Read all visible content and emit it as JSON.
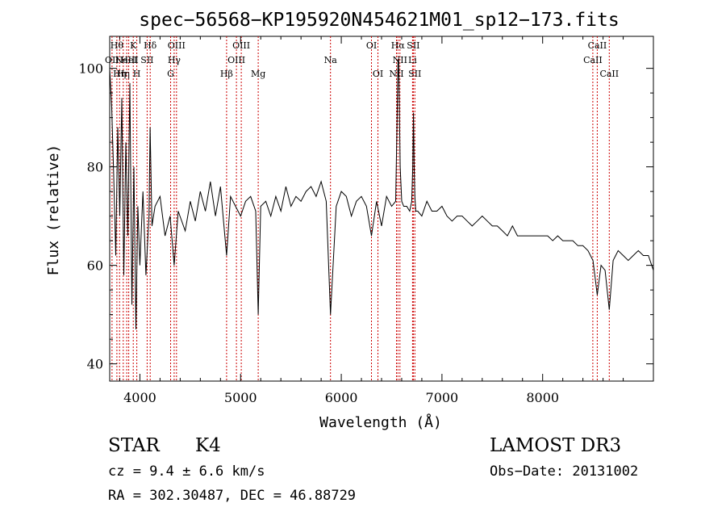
{
  "chart_data": {
    "type": "line",
    "title": "spec−56568−KP195920N454621M01_sp12−173.fits",
    "xlabel": "Wavelength (Å)",
    "ylabel": "Flux (relative)",
    "xlim": [
      3700,
      9100
    ],
    "ylim": [
      36.5,
      106.5
    ],
    "x_ticks": [
      4000,
      5000,
      6000,
      7000,
      8000
    ],
    "y_ticks": [
      40,
      60,
      80,
      100
    ],
    "grid": false,
    "series": [
      {
        "name": "spectrum",
        "color": "#000000",
        "x": [
          3700,
          3720,
          3740,
          3760,
          3780,
          3800,
          3820,
          3840,
          3860,
          3880,
          3900,
          3920,
          3940,
          3960,
          3980,
          4000,
          4030,
          4060,
          4090,
          4101,
          4120,
          4150,
          4200,
          4250,
          4300,
          4340,
          4380,
          4450,
          4500,
          4550,
          4600,
          4650,
          4700,
          4750,
          4800,
          4861,
          4900,
          4950,
          5000,
          5050,
          5100,
          5150,
          5175,
          5200,
          5250,
          5300,
          5350,
          5400,
          5450,
          5500,
          5550,
          5600,
          5650,
          5700,
          5750,
          5800,
          5850,
          5893,
          5950,
          6000,
          6050,
          6100,
          6150,
          6200,
          6250,
          6300,
          6350,
          6400,
          6450,
          6500,
          6540,
          6555,
          6563,
          6570,
          6575,
          6585,
          6600,
          6620,
          6650,
          6680,
          6700,
          6710,
          6717,
          6724,
          6731,
          6740,
          6760,
          6800,
          6850,
          6900,
          6950,
          7000,
          7050,
          7100,
          7150,
          7200,
          7250,
          7300,
          7350,
          7400,
          7450,
          7500,
          7550,
          7600,
          7650,
          7700,
          7750,
          7800,
          7850,
          7900,
          7950,
          8000,
          8050,
          8100,
          8150,
          8200,
          8250,
          8300,
          8350,
          8400,
          8450,
          8500,
          8542,
          8580,
          8620,
          8662,
          8700,
          8750,
          8800,
          8850,
          8900,
          8950,
          9000,
          9050,
          9100
        ],
        "y": [
          100,
          92,
          78,
          62,
          88,
          70,
          94,
          58,
          85,
          66,
          97,
          52,
          80,
          47,
          72,
          60,
          75,
          58,
          70,
          88,
          68,
          72,
          74,
          66,
          70,
          60,
          71,
          67,
          73,
          69,
          75,
          71,
          77,
          70,
          76,
          62,
          74,
          72,
          70,
          73,
          74,
          71,
          50,
          72,
          73,
          70,
          74,
          71,
          76,
          72,
          74,
          73,
          75,
          76,
          74,
          77,
          73,
          50,
          72,
          75,
          74,
          70,
          73,
          74,
          72,
          66,
          73,
          68,
          74,
          72,
          73,
          90,
          101,
          102,
          95,
          80,
          73,
          72,
          72,
          71,
          73,
          80,
          91,
          80,
          74,
          71,
          71,
          70,
          73,
          71,
          71,
          72,
          70,
          69,
          70,
          70,
          69,
          68,
          69,
          70,
          69,
          68,
          68,
          67,
          66,
          68,
          66,
          66,
          66,
          66,
          66,
          66,
          66,
          65,
          66,
          65,
          65,
          65,
          64,
          64,
          63,
          61,
          54,
          60,
          59,
          51,
          61,
          63,
          62,
          61,
          62,
          63,
          62,
          62,
          59
        ]
      }
    ],
    "line_markers": [
      {
        "wl": 3723,
        "label": "OII",
        "row": 2
      },
      {
        "wl": 3771,
        "label": "Hθ",
        "row": 1
      },
      {
        "wl": 3798,
        "label": "Hη",
        "row": 3
      },
      {
        "wl": 3835,
        "label": "Hη",
        "row": 3
      },
      {
        "wl": 3869,
        "label": "NeIII",
        "row": 2
      },
      {
        "wl": 3889,
        "label": "HeI",
        "row": 2
      },
      {
        "wl": 3934,
        "label": "K",
        "row": 1
      },
      {
        "wl": 3969,
        "label": "H",
        "row": 3
      },
      {
        "wl": 4072,
        "label": "SII",
        "row": 2
      },
      {
        "wl": 4102,
        "label": "Hδ",
        "row": 1
      },
      {
        "wl": 4305,
        "label": "G",
        "row": 3
      },
      {
        "wl": 4340,
        "label": "Hγ",
        "row": 2
      },
      {
        "wl": 4363,
        "label": "OIII",
        "row": 1
      },
      {
        "wl": 4861,
        "label": "Hβ",
        "row": 3
      },
      {
        "wl": 4959,
        "label": "OIII",
        "row": 2
      },
      {
        "wl": 5007,
        "label": "OIII",
        "row": 1
      },
      {
        "wl": 5175,
        "label": "Mg",
        "row": 3
      },
      {
        "wl": 5893,
        "label": "Na",
        "row": 2
      },
      {
        "wl": 6300,
        "label": "OI",
        "row": 1
      },
      {
        "wl": 6364,
        "label": "OI",
        "row": 3
      },
      {
        "wl": 6548,
        "label": "NII",
        "row": 3
      },
      {
        "wl": 6563,
        "label": "Hα",
        "row": 1
      },
      {
        "wl": 6583,
        "label": "NII",
        "row": 2
      },
      {
        "wl": 6708,
        "label": "Li",
        "row": 2
      },
      {
        "wl": 6716,
        "label": "SII",
        "row": 1
      },
      {
        "wl": 6731,
        "label": "SII",
        "row": 3
      },
      {
        "wl": 8498,
        "label": "CaII",
        "row": 2
      },
      {
        "wl": 8542,
        "label": "CaII",
        "row": 1
      },
      {
        "wl": 8662,
        "label": "CaII",
        "row": 3
      }
    ]
  },
  "info": {
    "class": "STAR",
    "subclass": "K4",
    "survey": "LAMOST DR3",
    "cz": "cz = 9.4 ± 6.6 km/s",
    "obs_date": "Obs−Date: 20131002",
    "radec": "RA = 302.30487, DEC =  46.88729"
  },
  "colors": {
    "spectrum": "#000000",
    "marker_line": "#cc0000",
    "axes": "#000000",
    "background": "#ffffff"
  }
}
